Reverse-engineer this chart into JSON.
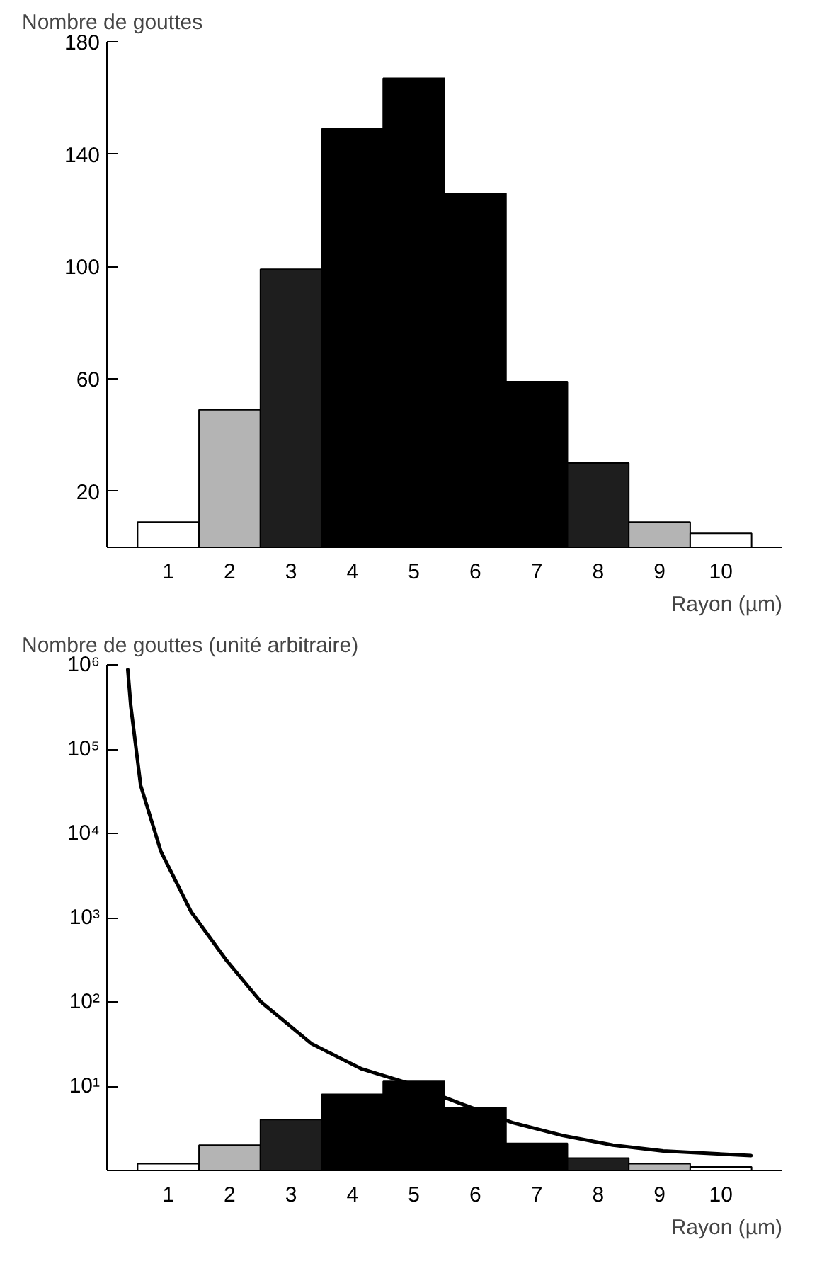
{
  "chart_data": [
    {
      "type": "histogram",
      "ylabel": "Nombre de gouttes",
      "xlabel": "Rayon (µm)",
      "bins": [
        0.5,
        1.5,
        2.5,
        3.5,
        4.5,
        5.5,
        6.5,
        7.5,
        8.5,
        9.5,
        10.5
      ],
      "values": [
        9,
        49,
        99,
        149,
        167,
        126,
        59,
        30,
        9,
        5
      ],
      "colors": [
        "#ffffff",
        "#b4b4b4",
        "#1e1e1e",
        "#000000",
        "#000000",
        "#000000",
        "#000000",
        "#1e1e1e",
        "#b4b4b4",
        "#ffffff"
      ],
      "xlim": [
        0,
        11
      ],
      "xticks": [
        1,
        2,
        3,
        4,
        5,
        6,
        7,
        8,
        9,
        10
      ],
      "ylim": [
        0,
        180
      ],
      "yticks": [
        20,
        60,
        100,
        140,
        180
      ],
      "grid": false
    },
    {
      "type": "histogram",
      "ylabel": "Nombre de gouttes (unité arbitraire)",
      "xlabel": "Rayon (µm)",
      "log": "y",
      "series": [
        {
          "type": "histogram",
          "bins": [
            0.5,
            1.5,
            2.5,
            3.5,
            4.5,
            5.5,
            6.5,
            7.5,
            8.5,
            9.5,
            10.5
          ],
          "values": [
            1.2,
            2.0,
            4.0,
            8.0,
            11.4,
            5.6,
            2.1,
            1.4,
            1.2,
            1.1
          ],
          "colors": [
            "#ffffff",
            "#b4b4b4",
            "#1e1e1e",
            "#000000",
            "#000000",
            "#000000",
            "#000000",
            "#1e1e1e",
            "#b4b4b4",
            "#ffffff"
          ]
        },
        {
          "type": "line",
          "color": "#000000",
          "x": [
            0.34,
            0.39,
            0.55,
            0.88,
            1.37,
            1.94,
            2.51,
            3.33,
            4.15,
            4.88,
            5.79,
            6.6,
            7.42,
            8.24,
            9.06,
            10.49
          ],
          "values": [
            880000,
            320000,
            37000,
            6100,
            1180,
            316,
            100,
            32,
            16,
            11,
            6.1,
            3.7,
            2.6,
            2.0,
            1.7,
            1.5
          ]
        }
      ],
      "xlim": [
        0,
        11
      ],
      "xticks": [
        1,
        2,
        3,
        4,
        5,
        6,
        7,
        8,
        9,
        10
      ],
      "ylim": [
        1,
        1000000
      ],
      "yticks": [
        {
          "value": 10,
          "label": "10¹"
        },
        {
          "value": 100,
          "label": "10²"
        },
        {
          "value": 1000,
          "label": "10³"
        },
        {
          "value": 10000,
          "label": "10⁴"
        },
        {
          "value": 100000,
          "label": "10⁵"
        },
        {
          "value": 1000000,
          "label": "10⁶"
        }
      ],
      "grid": false
    }
  ]
}
